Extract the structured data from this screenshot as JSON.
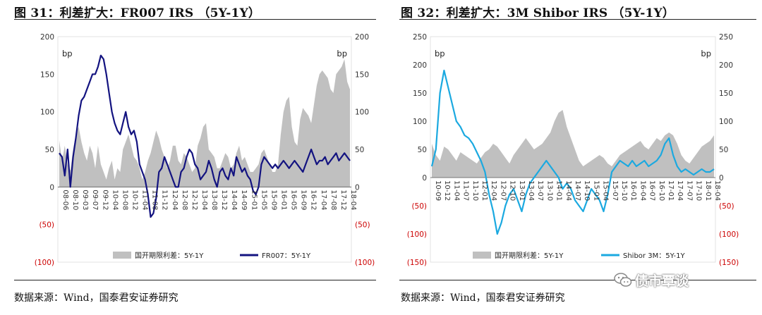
{
  "left": {
    "title": "图 31：利差扩大：FR007 IRS （5Y-1Y）",
    "source": "数据来源：Wind，国泰君安证券研究"
  },
  "right": {
    "title": "图 32：利差扩大：3M Shibor IRS （5Y-1Y）",
    "source": "数据来源：Wind，国泰君安证券研究"
  },
  "watermark": "债市覃谈",
  "colors": {
    "area": "#c0c0c0",
    "left_line": "#131380",
    "right_line": "#1ba9e0",
    "negative_tick": "#cc0000"
  },
  "chart_data": [
    {
      "type": "line",
      "ylabel_left": "bp",
      "ylabel_right": "bp",
      "ylim": [
        -100,
        200
      ],
      "yticks": [
        {
          "v": 200,
          "label": "200"
        },
        {
          "v": 150,
          "label": "150"
        },
        {
          "v": 100,
          "label": "100"
        },
        {
          "v": 50,
          "label": "50"
        },
        {
          "v": 0,
          "label": "0"
        },
        {
          "v": -50,
          "label": "(50)"
        },
        {
          "v": -100,
          "label": "(100)"
        }
      ],
      "xticks": [
        "08-06",
        "08-10",
        "09-03",
        "09-07",
        "09-12",
        "10-04",
        "10-08",
        "10-12",
        "11-04",
        "11-08",
        "11-12",
        "12-04",
        "12-08",
        "12-12",
        "13-04",
        "13-08",
        "13-12",
        "14-04",
        "14-09",
        "15-01",
        "15-05",
        "15-09",
        "16-01",
        "16-05",
        "16-09",
        "16-12",
        "17-04",
        "17-08",
        "17-12",
        "18-04"
      ],
      "series": [
        {
          "name": "国开期限利差：5Y-1Y",
          "kind": "area",
          "values": [
            62,
            35,
            55,
            30,
            22,
            50,
            70,
            80,
            60,
            45,
            35,
            55,
            45,
            25,
            55,
            30,
            20,
            10,
            25,
            35,
            10,
            25,
            20,
            50,
            60,
            70,
            55,
            40,
            35,
            25,
            10,
            20,
            35,
            45,
            60,
            75,
            65,
            50,
            40,
            25,
            35,
            55,
            55,
            35,
            30,
            45,
            40,
            30,
            20,
            25,
            55,
            65,
            80,
            85,
            50,
            45,
            40,
            25,
            25,
            35,
            45,
            40,
            25,
            30,
            45,
            55,
            35,
            40,
            30,
            20,
            20,
            25,
            30,
            45,
            50,
            40,
            30,
            20,
            20,
            30,
            70,
            100,
            115,
            120,
            80,
            60,
            55,
            90,
            105,
            100,
            95,
            85,
            110,
            135,
            150,
            155,
            150,
            145,
            130,
            125,
            150,
            155,
            160,
            170,
            140,
            130
          ]
        },
        {
          "name": "FR007：5Y-1Y",
          "kind": "line",
          "values": [
            45,
            40,
            15,
            50,
            0,
            40,
            65,
            95,
            115,
            120,
            130,
            140,
            150,
            150,
            160,
            175,
            170,
            150,
            125,
            100,
            85,
            75,
            70,
            85,
            100,
            80,
            70,
            75,
            60,
            30,
            20,
            10,
            -10,
            -40,
            -35,
            -15,
            20,
            25,
            40,
            30,
            20,
            10,
            0,
            0,
            20,
            25,
            40,
            50,
            45,
            30,
            25,
            10,
            15,
            20,
            35,
            25,
            10,
            0,
            20,
            25,
            15,
            10,
            25,
            15,
            40,
            30,
            20,
            25,
            15,
            10,
            -5,
            -10,
            0,
            30,
            40,
            35,
            30,
            25,
            30,
            25,
            30,
            35,
            30,
            25,
            30,
            35,
            30,
            25,
            20,
            30,
            40,
            50,
            40,
            30,
            35,
            35,
            40,
            30,
            35,
            40,
            45,
            35,
            40,
            45,
            40,
            35
          ]
        }
      ]
    },
    {
      "type": "line",
      "ylabel_left": "bp",
      "ylabel_right": "bp",
      "ylim": [
        -150,
        250
      ],
      "yticks": [
        {
          "v": 250,
          "label": "250"
        },
        {
          "v": 200,
          "label": "200"
        },
        {
          "v": 150,
          "label": "150"
        },
        {
          "v": 100,
          "label": "100"
        },
        {
          "v": 50,
          "label": "50"
        },
        {
          "v": 0,
          "label": "0"
        },
        {
          "v": -50,
          "label": "(50)"
        },
        {
          "v": -100,
          "label": "(100)"
        },
        {
          "v": -150,
          "label": "(150)"
        }
      ],
      "xticks": [
        "10-09",
        "10-12",
        "11-04",
        "11-07",
        "11-10",
        "12-01",
        "12-04",
        "12-07",
        "12-10",
        "13-01",
        "13-04",
        "13-07",
        "13-10",
        "14-01",
        "14-04",
        "14-07",
        "14-10",
        "15-01",
        "15-04",
        "15-07",
        "15-10",
        "16-01",
        "16-04",
        "16-07",
        "16-10",
        "17-01",
        "17-04",
        "17-07",
        "17-10",
        "18-01",
        "18-04"
      ],
      "series": [
        {
          "name": "国开期限利差：5Y-1Y",
          "kind": "area",
          "values": [
            60,
            40,
            30,
            55,
            50,
            40,
            30,
            45,
            40,
            35,
            30,
            25,
            35,
            45,
            50,
            60,
            55,
            45,
            35,
            25,
            40,
            50,
            60,
            70,
            60,
            50,
            55,
            60,
            70,
            80,
            100,
            115,
            120,
            90,
            70,
            50,
            30,
            20,
            25,
            30,
            35,
            40,
            35,
            25,
            20,
            30,
            40,
            45,
            50,
            55,
            60,
            65,
            55,
            50,
            60,
            70,
            65,
            75,
            80,
            75,
            60,
            40,
            30,
            25,
            35,
            45,
            55,
            60,
            65,
            75
          ]
        },
        {
          "name": "Shibor 3M：5Y-1Y",
          "kind": "line",
          "values": [
            20,
            50,
            150,
            190,
            160,
            130,
            100,
            90,
            75,
            70,
            60,
            45,
            30,
            10,
            -30,
            -60,
            -100,
            -80,
            -50,
            -30,
            -20,
            -40,
            -60,
            -30,
            -10,
            0,
            10,
            20,
            30,
            20,
            10,
            0,
            -20,
            -10,
            -20,
            -40,
            -50,
            -60,
            -40,
            -20,
            -30,
            -40,
            -60,
            -30,
            10,
            20,
            30,
            25,
            20,
            30,
            20,
            25,
            30,
            20,
            25,
            30,
            40,
            60,
            70,
            40,
            20,
            10,
            15,
            10,
            5,
            10,
            15,
            10,
            10,
            15
          ]
        }
      ]
    }
  ]
}
